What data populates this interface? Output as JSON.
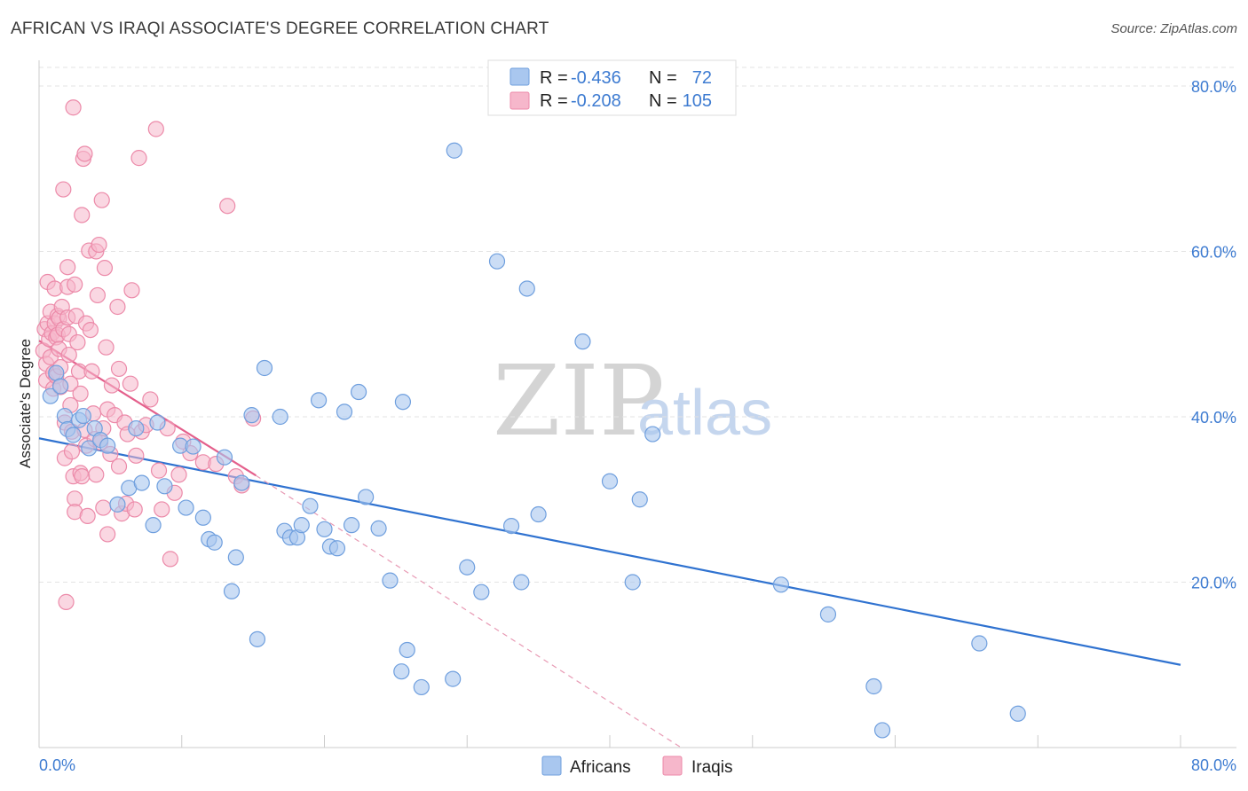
{
  "header": {
    "title": "AFRICAN VS IRAQI ASSOCIATE'S DEGREE CORRELATION CHART",
    "source": "Source: ZipAtlas.com"
  },
  "legend": {
    "row1": {
      "r_label": "R =",
      "r_value": "-0.436",
      "n_label": "N =",
      "n_value": "72"
    },
    "row2": {
      "r_label": "R =",
      "r_value": "-0.208",
      "n_label": "N =",
      "n_value": "105"
    }
  },
  "bottom_legend": {
    "africans": "Africans",
    "iraqis": "Iraqis"
  },
  "watermark": {
    "zip": "ZIP",
    "atlas": "atlas"
  },
  "colors": {
    "africans_fill": "#a9c7ef",
    "africans_stroke": "#6f9fde",
    "africans_line": "#2f72d0",
    "iraqis_fill": "#f6b7cb",
    "iraqis_stroke": "#ec8aa9",
    "iraqis_line": "#e4608c"
  },
  "chart_data": {
    "type": "scatter",
    "title": "AFRICAN VS IRAQI ASSOCIATE'S DEGREE CORRELATION CHART",
    "xlabel": "",
    "ylabel": "Associate's Degree",
    "xlim": [
      0,
      80
    ],
    "ylim": [
      0,
      80
    ],
    "x_tick_labels": [
      "0.0%",
      "80.0%"
    ],
    "y_ticks": [
      20,
      40,
      60,
      80
    ],
    "y_tick_labels": [
      "20.0%",
      "40.0%",
      "60.0%",
      "80.0%"
    ],
    "series": [
      {
        "name": "Africans",
        "r": -0.436,
        "n": 72,
        "trend": {
          "x0": 0,
          "y0": 37.4,
          "x1": 80,
          "y1": 10.0
        },
        "points": [
          [
            0.8,
            42.5
          ],
          [
            1.2,
            45.3
          ],
          [
            1.5,
            43.7
          ],
          [
            1.8,
            40.1
          ],
          [
            2.0,
            38.5
          ],
          [
            2.4,
            37.8
          ],
          [
            2.8,
            39.6
          ],
          [
            3.1,
            40.1
          ],
          [
            3.5,
            36.2
          ],
          [
            3.9,
            38.6
          ],
          [
            4.3,
            37.2
          ],
          [
            4.8,
            36.5
          ],
          [
            5.5,
            29.4
          ],
          [
            6.3,
            31.4
          ],
          [
            6.8,
            38.6
          ],
          [
            7.2,
            32.0
          ],
          [
            8.0,
            26.9
          ],
          [
            8.3,
            39.3
          ],
          [
            8.8,
            31.6
          ],
          [
            9.9,
            36.5
          ],
          [
            10.3,
            29.0
          ],
          [
            10.8,
            36.4
          ],
          [
            11.5,
            27.8
          ],
          [
            11.9,
            25.2
          ],
          [
            12.3,
            24.8
          ],
          [
            13.0,
            35.1
          ],
          [
            13.5,
            18.9
          ],
          [
            13.8,
            23.0
          ],
          [
            14.2,
            32.0
          ],
          [
            14.9,
            40.2
          ],
          [
            15.3,
            13.1
          ],
          [
            15.8,
            45.9
          ],
          [
            16.9,
            40.0
          ],
          [
            17.2,
            26.2
          ],
          [
            17.6,
            25.4
          ],
          [
            18.1,
            25.4
          ],
          [
            18.4,
            26.9
          ],
          [
            19.0,
            29.2
          ],
          [
            19.6,
            42.0
          ],
          [
            20.0,
            26.4
          ],
          [
            20.4,
            24.3
          ],
          [
            20.9,
            24.1
          ],
          [
            21.4,
            40.6
          ],
          [
            21.9,
            26.9
          ],
          [
            22.4,
            43.0
          ],
          [
            22.9,
            30.3
          ],
          [
            23.8,
            26.5
          ],
          [
            24.6,
            20.2
          ],
          [
            25.5,
            41.8
          ],
          [
            25.8,
            11.8
          ],
          [
            25.4,
            9.2
          ],
          [
            26.8,
            7.3
          ],
          [
            29.0,
            8.3
          ],
          [
            29.1,
            72.2
          ],
          [
            30.0,
            21.8
          ],
          [
            31.0,
            18.8
          ],
          [
            32.1,
            58.8
          ],
          [
            33.1,
            26.8
          ],
          [
            33.8,
            20.0
          ],
          [
            34.2,
            55.5
          ],
          [
            35.0,
            28.2
          ],
          [
            38.1,
            49.1
          ],
          [
            40.0,
            32.2
          ],
          [
            41.6,
            20.0
          ],
          [
            42.1,
            30.0
          ],
          [
            43.0,
            37.9
          ],
          [
            52.0,
            19.7
          ],
          [
            55.3,
            16.1
          ],
          [
            58.5,
            7.4
          ],
          [
            59.1,
            2.1
          ],
          [
            65.9,
            12.6
          ],
          [
            68.6,
            4.1
          ]
        ]
      },
      {
        "name": "Iraqis",
        "r": -0.208,
        "n": 105,
        "trend": {
          "x0": 0,
          "y0": 49.2,
          "x1": 15.2,
          "y1": 32.9
        },
        "trend_extension": {
          "x0": 15.2,
          "y0": 32.9,
          "x1": 45.0,
          "y1": 0.0
        },
        "points": [
          [
            0.3,
            48.0
          ],
          [
            0.4,
            50.6
          ],
          [
            0.5,
            46.4
          ],
          [
            0.5,
            44.4
          ],
          [
            0.6,
            56.3
          ],
          [
            0.6,
            51.3
          ],
          [
            0.7,
            49.4
          ],
          [
            0.8,
            52.7
          ],
          [
            0.8,
            47.2
          ],
          [
            0.9,
            50.1
          ],
          [
            1.0,
            45.3
          ],
          [
            1.0,
            43.4
          ],
          [
            1.1,
            55.5
          ],
          [
            1.1,
            51.3
          ],
          [
            1.2,
            49.6
          ],
          [
            1.2,
            44.9
          ],
          [
            1.3,
            52.2
          ],
          [
            1.3,
            49.9
          ],
          [
            1.4,
            51.9
          ],
          [
            1.4,
            48.2
          ],
          [
            1.5,
            46.0
          ],
          [
            1.5,
            43.6
          ],
          [
            1.6,
            53.3
          ],
          [
            1.7,
            50.6
          ],
          [
            1.7,
            67.5
          ],
          [
            1.8,
            39.3
          ],
          [
            1.8,
            35.0
          ],
          [
            1.9,
            17.6
          ],
          [
            2.0,
            58.1
          ],
          [
            2.0,
            55.7
          ],
          [
            2.0,
            52.0
          ],
          [
            2.1,
            50.0
          ],
          [
            2.1,
            47.5
          ],
          [
            2.2,
            44.0
          ],
          [
            2.2,
            41.4
          ],
          [
            2.3,
            38.2
          ],
          [
            2.3,
            35.8
          ],
          [
            2.4,
            77.4
          ],
          [
            2.4,
            32.8
          ],
          [
            2.5,
            30.1
          ],
          [
            2.5,
            28.5
          ],
          [
            2.5,
            56.0
          ],
          [
            2.6,
            52.2
          ],
          [
            2.7,
            49.0
          ],
          [
            2.8,
            45.5
          ],
          [
            2.9,
            42.8
          ],
          [
            2.9,
            33.2
          ],
          [
            3.0,
            64.4
          ],
          [
            3.0,
            32.8
          ],
          [
            3.1,
            71.2
          ],
          [
            3.2,
            71.8
          ],
          [
            3.2,
            38.4
          ],
          [
            3.3,
            36.5
          ],
          [
            3.3,
            51.3
          ],
          [
            3.4,
            28.0
          ],
          [
            3.5,
            60.1
          ],
          [
            3.6,
            50.5
          ],
          [
            3.7,
            45.5
          ],
          [
            3.8,
            40.4
          ],
          [
            3.9,
            37.3
          ],
          [
            4.0,
            60.0
          ],
          [
            4.0,
            33.0
          ],
          [
            4.1,
            54.7
          ],
          [
            4.2,
            60.8
          ],
          [
            4.3,
            36.9
          ],
          [
            4.4,
            66.2
          ],
          [
            4.5,
            38.6
          ],
          [
            4.5,
            29.0
          ],
          [
            4.6,
            58.0
          ],
          [
            4.7,
            48.4
          ],
          [
            4.8,
            40.9
          ],
          [
            4.8,
            25.8
          ],
          [
            5.0,
            35.5
          ],
          [
            5.1,
            43.8
          ],
          [
            5.3,
            40.2
          ],
          [
            5.5,
            53.3
          ],
          [
            5.6,
            34.0
          ],
          [
            5.6,
            45.8
          ],
          [
            5.8,
            28.3
          ],
          [
            6.0,
            39.3
          ],
          [
            6.1,
            29.5
          ],
          [
            6.2,
            37.9
          ],
          [
            6.4,
            44.0
          ],
          [
            6.5,
            55.3
          ],
          [
            6.7,
            28.8
          ],
          [
            6.8,
            35.3
          ],
          [
            7.0,
            71.3
          ],
          [
            7.2,
            38.2
          ],
          [
            7.5,
            39.0
          ],
          [
            7.8,
            42.1
          ],
          [
            8.2,
            74.8
          ],
          [
            8.4,
            33.5
          ],
          [
            8.6,
            28.8
          ],
          [
            9.0,
            38.6
          ],
          [
            9.2,
            22.8
          ],
          [
            9.5,
            30.8
          ],
          [
            9.8,
            33.0
          ],
          [
            10.1,
            37.0
          ],
          [
            10.6,
            35.6
          ],
          [
            11.5,
            34.5
          ],
          [
            12.4,
            34.3
          ],
          [
            13.2,
            65.5
          ],
          [
            13.8,
            32.8
          ],
          [
            14.2,
            31.7
          ],
          [
            15.0,
            39.8
          ]
        ]
      }
    ]
  }
}
